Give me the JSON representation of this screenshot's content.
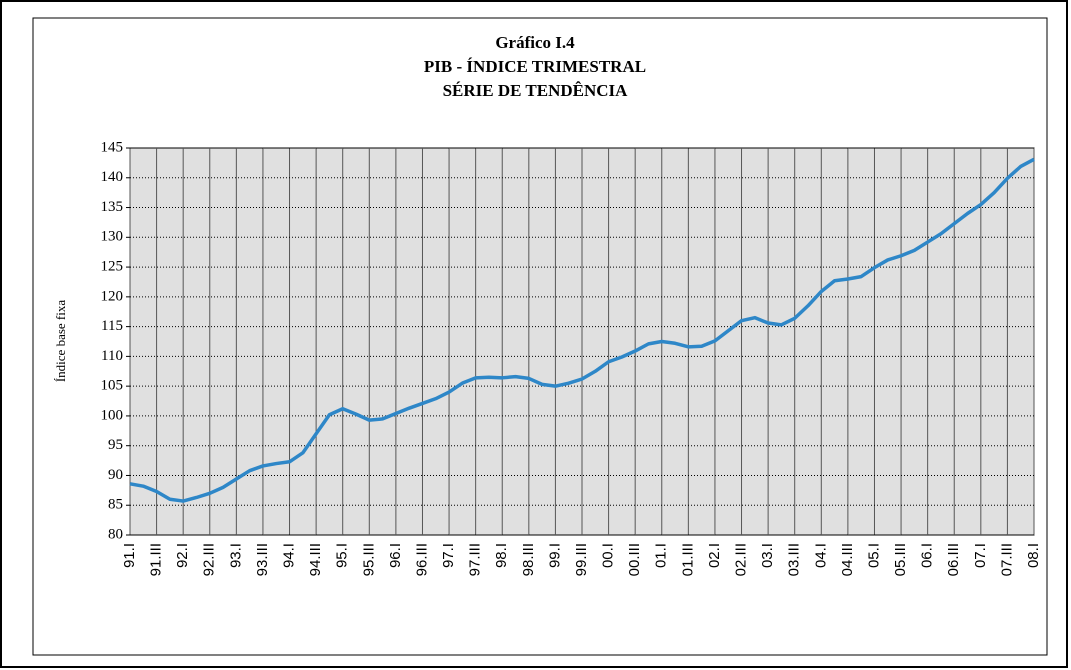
{
  "chart_data": {
    "type": "line",
    "title": [
      "Gráfico I.4",
      "PIB - ÍNDICE TRIMESTRAL",
      "SÉRIE DE TENDÊNCIA"
    ],
    "y_label": "Índice base fixa",
    "categories": [
      "91.I",
      null,
      "91.III",
      null,
      "92.I",
      null,
      "92.III",
      null,
      "93.I",
      null,
      "93.III",
      null,
      "94.I",
      null,
      "94.III",
      null,
      "95.I",
      null,
      "95.III",
      null,
      "96.I",
      null,
      "96.III",
      null,
      "97.I",
      null,
      "97.III",
      null,
      "98.I",
      null,
      "98.III",
      null,
      "99.I",
      null,
      "99.III",
      null,
      "00.I",
      null,
      "00.III",
      null,
      "01.I",
      null,
      "01.III",
      null,
      "02.I",
      null,
      "02.III",
      null,
      "03.I",
      null,
      "03.III",
      null,
      "04.I",
      null,
      "04.III",
      null,
      "05.I",
      null,
      "05.III",
      null,
      "06.I",
      null,
      "06.III",
      null,
      "07.I",
      null,
      "07.III",
      null,
      "08.I"
    ],
    "values": [
      88.6,
      88.2,
      87.3,
      86.0,
      85.7,
      86.3,
      87.0,
      88.0,
      89.4,
      90.8,
      91.6,
      92.0,
      92.3,
      93.8,
      97.0,
      100.2,
      101.2,
      100.3,
      99.3,
      99.5,
      100.4,
      101.3,
      102.1,
      102.9,
      104.0,
      105.5,
      106.4,
      106.5,
      106.4,
      106.6,
      106.3,
      105.3,
      105.0,
      105.5,
      106.2,
      107.5,
      109.1,
      109.9,
      110.9,
      112.1,
      112.5,
      112.2,
      111.6,
      111.7,
      112.6,
      114.3,
      116.0,
      116.5,
      115.6,
      115.3,
      116.4,
      118.5,
      120.9,
      122.7,
      123.0,
      123.4,
      124.9,
      126.2,
      126.9,
      127.8,
      129.2,
      130.6,
      132.3,
      134.0,
      135.5,
      137.5,
      139.9,
      141.9,
      143.1
    ],
    "color": "#2e87c8",
    "ylim": [
      80,
      145
    ],
    "yticks": [
      80,
      85,
      90,
      95,
      100,
      105,
      110,
      115,
      120,
      125,
      130,
      135,
      140,
      145
    ],
    "grid": true
  }
}
